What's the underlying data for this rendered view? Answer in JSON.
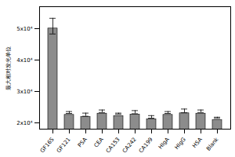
{
  "chart_data": {
    "type": "bar",
    "y_label": "最大相对发光单位",
    "categories": [
      "GF16S",
      "GF121",
      "PSA",
      "CEA",
      "CA153",
      "CA242",
      "CA199",
      "HIgA",
      "HIgG",
      "HSA",
      "Blank"
    ],
    "values": [
      50800,
      23300,
      22600,
      23700,
      22900,
      23400,
      21900,
      23300,
      23800,
      23700,
      21600
    ],
    "errors": [
      2500,
      300,
      500,
      400,
      200,
      500,
      400,
      300,
      600,
      400,
      200
    ],
    "color": "#8c8c8c",
    "ylim": [
      18000,
      57000
    ],
    "yticks": [
      {
        "value": 20000,
        "label": "2x10⁴"
      },
      {
        "value": 30000,
        "label": "3x10⁴"
      },
      {
        "value": 40000,
        "label": "4x10⁴"
      },
      {
        "value": 50000,
        "label": "5x10⁴"
      }
    ],
    "grid": false
  }
}
